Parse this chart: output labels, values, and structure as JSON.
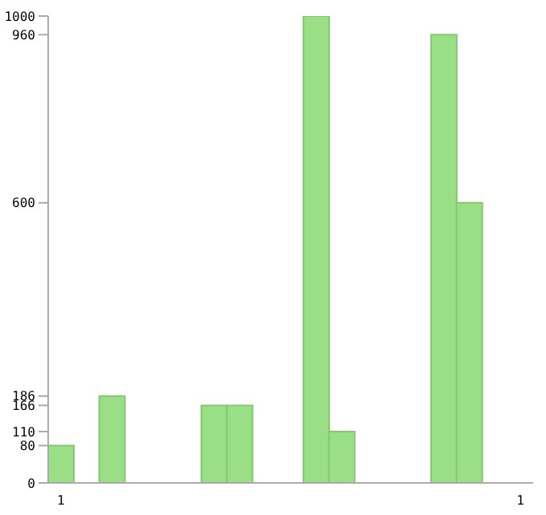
{
  "chart_data": {
    "type": "bar",
    "categories": [
      "1",
      null,
      null,
      null,
      null,
      null,
      null,
      null,
      null,
      null,
      null,
      null,
      null,
      null,
      null,
      null,
      null,
      null,
      "1"
    ],
    "values": [
      80,
      0,
      186,
      0,
      0,
      0,
      166,
      166,
      0,
      0,
      1000,
      110,
      0,
      0,
      0,
      960,
      600,
      0,
      0
    ],
    "color": "#9ade86",
    "ylim": [
      0,
      1000
    ],
    "yticks": [
      0,
      80,
      110,
      166,
      186,
      600,
      960,
      1000
    ]
  }
}
